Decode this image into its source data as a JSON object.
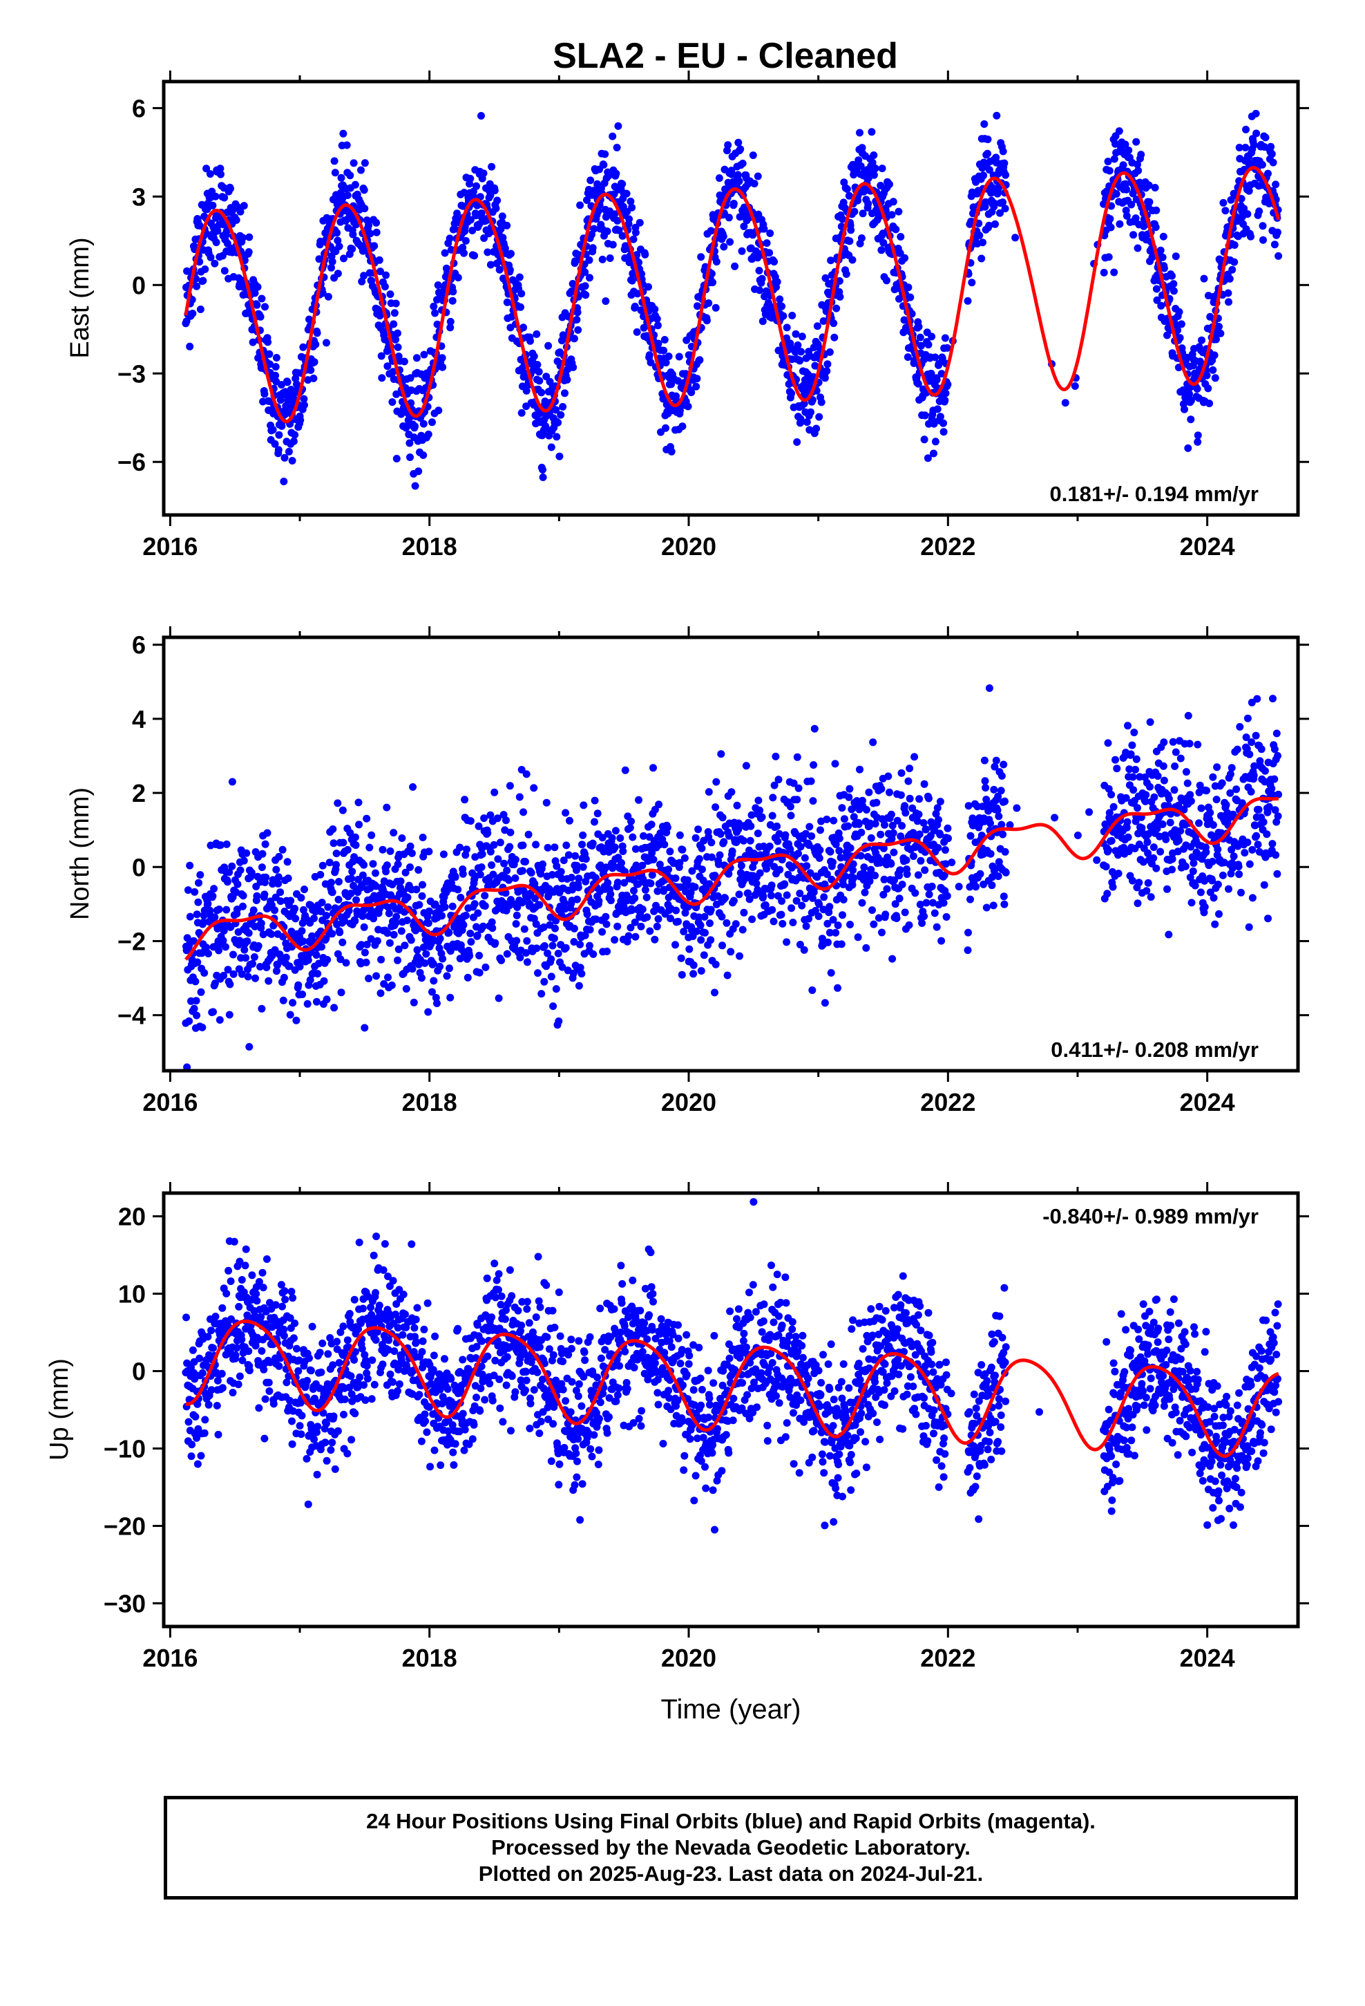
{
  "footer": {
    "line1": "24 Hour Positions Using Final Orbits (blue) and Rapid Orbits (magenta).",
    "line2": "Processed by the Nevada Geodetic Laboratory.",
    "line3": "Plotted on 2025-Aug-23. Last data on 2024-Jul-21."
  },
  "colors": {
    "points": "#0000ff",
    "model": "#ff0000",
    "axis": "#000000"
  },
  "chart_data": [
    {
      "type": "scatter",
      "title": "SLA2  - EU - Cleaned",
      "xlabel": "",
      "ylabel": "East (mm)",
      "xlim": [
        2015.95,
        2024.7
      ],
      "ylim": [
        -7.8,
        6.9
      ],
      "xticks": [
        2016,
        2018,
        2020,
        2022,
        2024
      ],
      "yticks": [
        6,
        3,
        0,
        -3,
        -6
      ],
      "rate_label": "0.181+/- 0.194 mm/yr",
      "rate_position": "bottom-right",
      "series": [
        {
          "style": "points",
          "color": "#0000ff",
          "data_span": [
            2016.12,
            2024.55
          ],
          "gaps": [
            [
              2022.0,
              2022.15
            ],
            [
              2022.45,
              2023.2
            ]
          ],
          "model": {
            "rate": 0.181,
            "offset": -0.2,
            "t0": 2020.3,
            "annual_amp": 3.6,
            "annual_phase": 2016.38,
            "semiannual_amp": 0.3,
            "semiannual_phase": 2016.2
          },
          "scatter_sd": 0.9
        },
        {
          "style": "line",
          "color": "#ff0000",
          "x_range": [
            2016.12,
            2024.55
          ],
          "model": {
            "rate": 0.181,
            "offset": -0.2,
            "t0": 2020.3,
            "annual_amp": 3.6,
            "annual_phase": 2016.38,
            "semiannual_amp": 0.3,
            "semiannual_phase": 2016.2
          }
        }
      ]
    },
    {
      "type": "scatter",
      "title": "",
      "xlabel": "",
      "ylabel": "North (mm)",
      "xlim": [
        2015.95,
        2024.7
      ],
      "ylim": [
        -5.5,
        6.2
      ],
      "xticks": [
        2016,
        2018,
        2020,
        2022,
        2024
      ],
      "yticks": [
        6,
        4,
        2,
        0,
        -2,
        -4
      ],
      "rate_label": "0.411+/- 0.208 mm/yr",
      "rate_position": "bottom-right",
      "series": [
        {
          "style": "points",
          "color": "#0000ff",
          "data_span": [
            2016.12,
            2024.55
          ],
          "gaps": [
            [
              2022.0,
              2022.15
            ],
            [
              2022.45,
              2023.2
            ]
          ],
          "model": {
            "rate": 0.411,
            "offset": -0.2,
            "t0": 2020.3,
            "annual_amp": 0.5,
            "annual_phase": 2016.55,
            "semiannual_amp": 0.2,
            "semiannual_phase": 2016.3
          },
          "scatter_sd": 1.1
        },
        {
          "style": "line",
          "color": "#ff0000",
          "x_range": [
            2016.12,
            2024.55
          ],
          "model": {
            "rate": 0.411,
            "offset": -0.2,
            "t0": 2020.3,
            "annual_amp": 0.5,
            "annual_phase": 2016.55,
            "semiannual_amp": 0.2,
            "semiannual_phase": 2016.3
          }
        }
      ]
    },
    {
      "type": "scatter",
      "title": "",
      "xlabel": "Time (year)",
      "ylabel": "Up (mm)",
      "xlim": [
        2015.95,
        2024.7
      ],
      "ylim": [
        -33,
        23
      ],
      "xticks": [
        2016,
        2018,
        2020,
        2022,
        2024
      ],
      "yticks": [
        20,
        10,
        0,
        -10,
        -20,
        -30
      ],
      "rate_label": "-0.840+/- 0.989 mm/yr",
      "rate_position": "top-right",
      "series": [
        {
          "style": "points",
          "color": "#0000ff",
          "data_span": [
            2016.12,
            2024.55
          ],
          "gaps": [
            [
              2022.0,
              2022.15
            ],
            [
              2022.45,
              2023.2
            ]
          ],
          "model": {
            "rate": -0.84,
            "offset": -1.5,
            "t0": 2020.3,
            "annual_amp": 5.5,
            "annual_phase": 2016.62,
            "semiannual_amp": 0.8,
            "semiannual_phase": 2016.4
          },
          "scatter_sd": 4.5
        },
        {
          "style": "line",
          "color": "#ff0000",
          "x_range": [
            2016.12,
            2024.55
          ],
          "model": {
            "rate": -0.84,
            "offset": -1.5,
            "t0": 2020.3,
            "annual_amp": 5.5,
            "annual_phase": 2016.62,
            "semiannual_amp": 0.8,
            "semiannual_phase": 2016.4
          }
        }
      ]
    }
  ]
}
